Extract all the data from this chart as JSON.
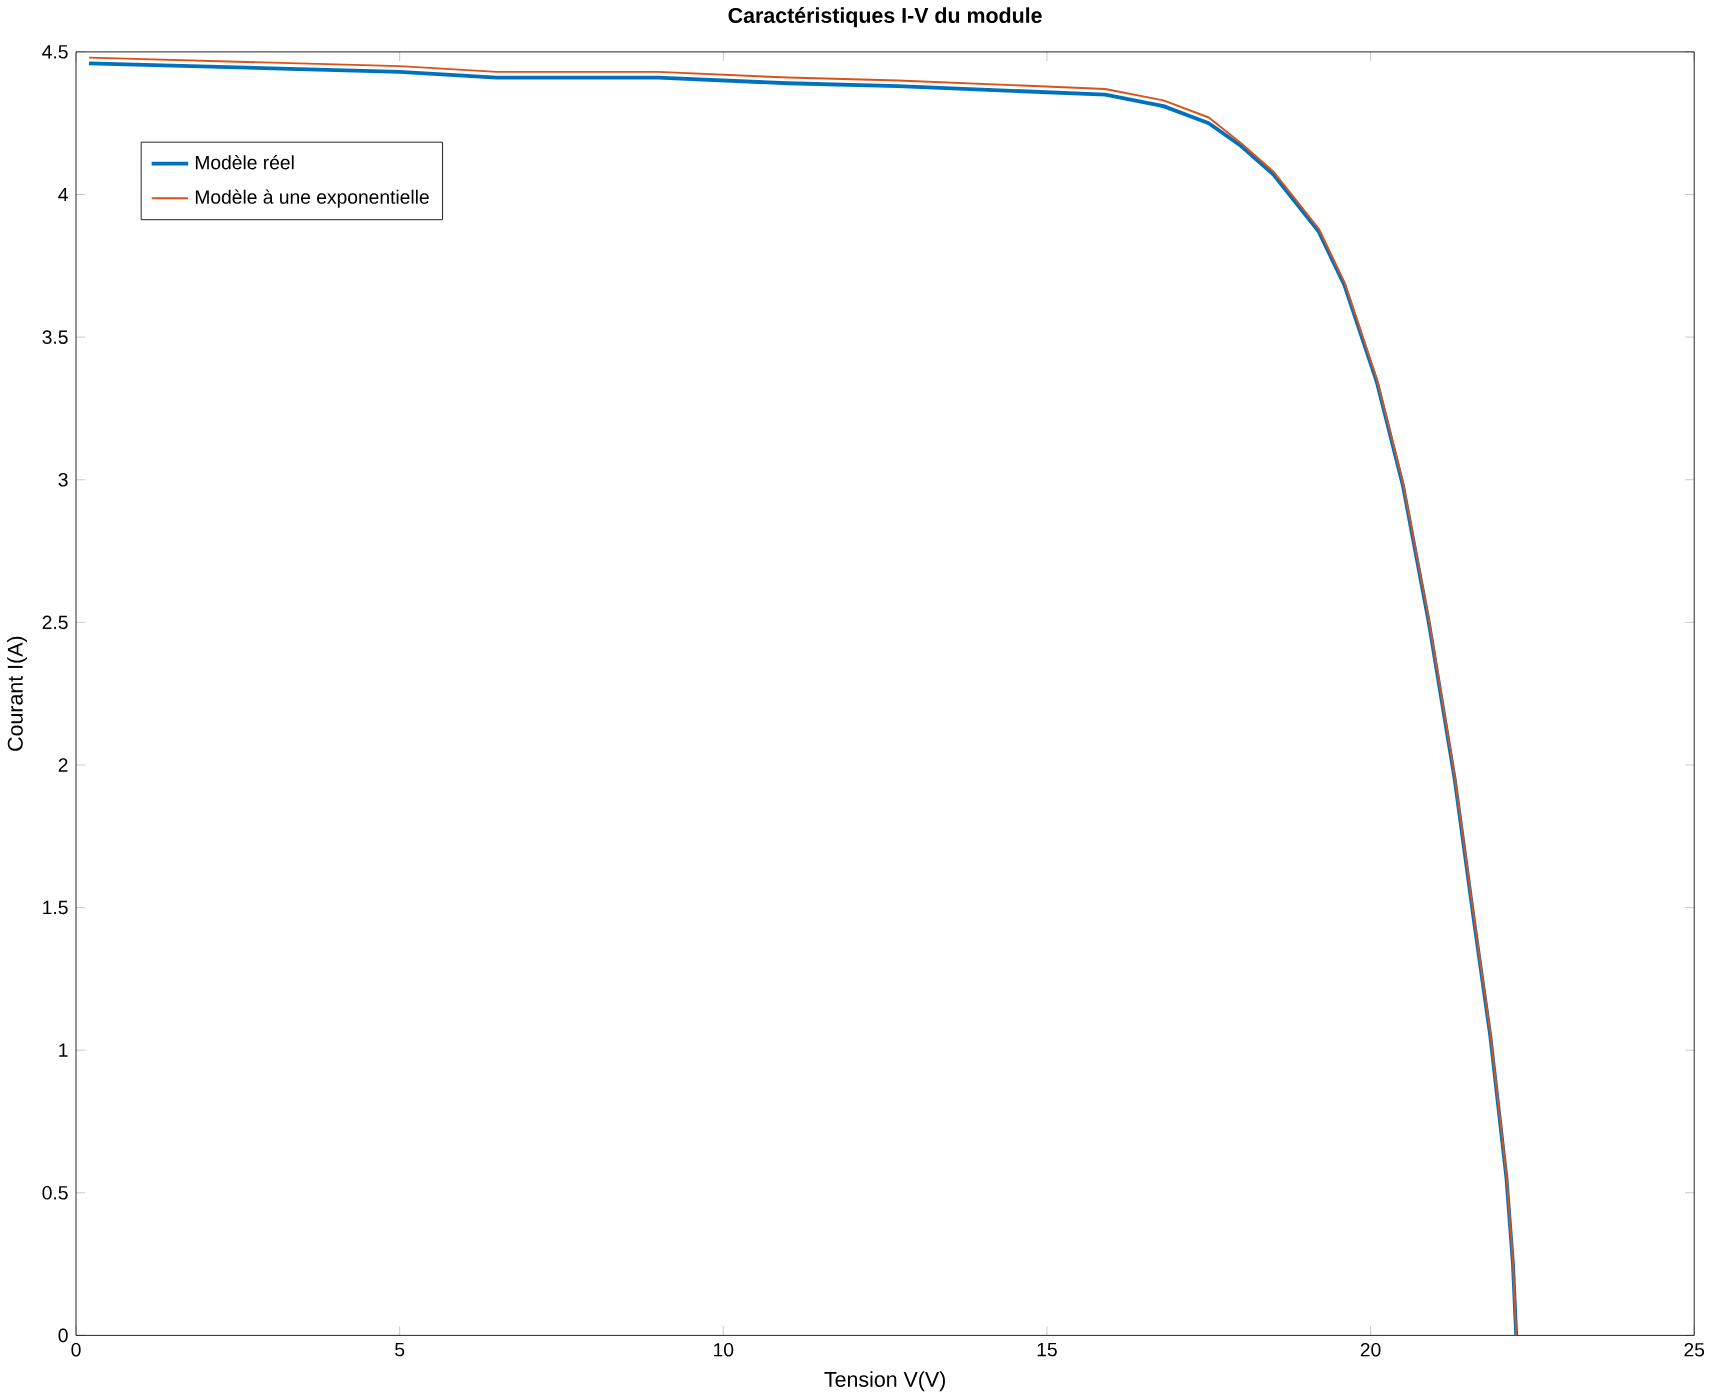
{
  "chart_data": {
    "type": "line",
    "title": "Caractéristiques I-V du module",
    "xlabel": "Tension V(V)",
    "ylabel": "Courant I(A)",
    "xlim": [
      0,
      25
    ],
    "ylim": [
      0,
      4.5
    ],
    "xticks": [
      0,
      5,
      10,
      15,
      20,
      25
    ],
    "yticks": [
      0,
      0.5,
      1,
      1.5,
      2,
      2.5,
      3,
      3.5,
      4,
      4.5
    ],
    "legend": "top left",
    "grid": false,
    "series": [
      {
        "name": "Modèle réel",
        "color": "#0072bd",
        "x": [
          0.2,
          5,
          6.5,
          9,
          11,
          12.7,
          15.9,
          16.8,
          17.5,
          18,
          18.5,
          19.2,
          19.6,
          20.1,
          20.5,
          20.9,
          21.3,
          21.6,
          21.85,
          22.1,
          22.2,
          22.25
        ],
        "values": [
          4.46,
          4.43,
          4.41,
          4.41,
          4.39,
          4.38,
          4.35,
          4.31,
          4.25,
          4.17,
          4.07,
          3.87,
          3.68,
          3.34,
          2.98,
          2.5,
          1.95,
          1.45,
          1.05,
          0.55,
          0.25,
          0
        ]
      },
      {
        "name": "Modèle à une exponentielle",
        "color": "#d95319",
        "x": [
          0.2,
          5,
          6.5,
          9,
          11,
          12.7,
          15.9,
          16.8,
          17.5,
          18,
          18.5,
          19.2,
          19.6,
          20.1,
          20.5,
          20.9,
          21.3,
          21.6,
          21.85,
          22.1,
          22.2,
          22.25
        ],
        "values": [
          4.48,
          4.45,
          4.43,
          4.43,
          4.41,
          4.4,
          4.37,
          4.33,
          4.27,
          4.18,
          4.08,
          3.88,
          3.69,
          3.35,
          2.99,
          2.51,
          1.96,
          1.46,
          1.06,
          0.56,
          0.26,
          0
        ]
      }
    ]
  }
}
